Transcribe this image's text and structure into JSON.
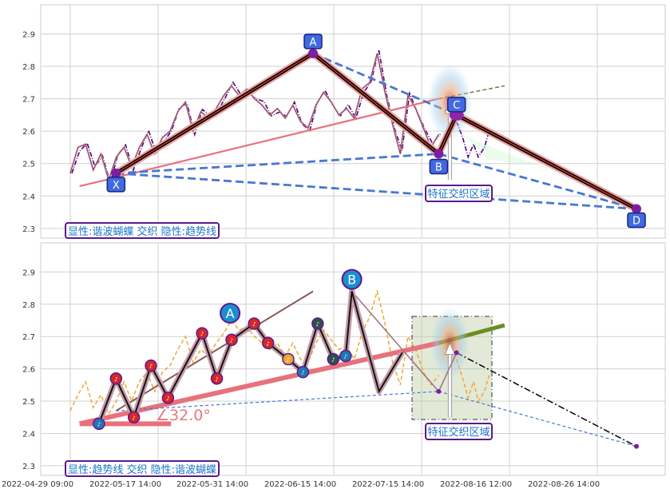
{
  "chart_data": [
    {
      "type": "line",
      "panel": "top",
      "ylim": [
        2.27,
        2.99
      ],
      "yticks": [
        2.3,
        2.4,
        2.5,
        2.6,
        2.7,
        2.8,
        2.9
      ],
      "legend_text": "显性:谐波蝴蝶 交织 隐性:趋势线",
      "zone_label": "特征交织区域",
      "pattern_points": [
        {
          "label": "X",
          "x": 5.9,
          "y": 2.47
        },
        {
          "label": "A",
          "x": 31.3,
          "y": 2.84
        },
        {
          "label": "B",
          "x": 47.5,
          "y": 2.53
        },
        {
          "label": "C",
          "x": 49.8,
          "y": 2.65
        },
        {
          "label": "D",
          "x": 73.0,
          "y": 2.36
        }
      ],
      "price_series": [
        2.47,
        2.55,
        2.56,
        2.48,
        2.53,
        2.45,
        2.52,
        2.55,
        2.49,
        2.55,
        2.59,
        2.53,
        2.58,
        2.6,
        2.66,
        2.69,
        2.6,
        2.66,
        2.64,
        2.67,
        2.71,
        2.74,
        2.71,
        2.73,
        2.7,
        2.68,
        2.65,
        2.67,
        2.64,
        2.68,
        2.63,
        2.61,
        2.68,
        2.72,
        2.69,
        2.65,
        2.67,
        2.64,
        2.73,
        2.75,
        2.84,
        2.72,
        2.62,
        2.53,
        2.71,
        2.67,
        2.61,
        2.55,
        2.59
      ]
    },
    {
      "type": "line",
      "panel": "bottom",
      "ylim": [
        2.27,
        2.99
      ],
      "yticks": [
        2.3,
        2.4,
        2.5,
        2.6,
        2.7,
        2.8,
        2.9
      ],
      "xtick_labels": [
        "2022-04-29 09:00",
        "2022-05-17 14:00",
        "2022-05-31 14:00",
        "2022-06-15 14:00",
        "2022-07-15 14:00",
        "2022-08-16 12:00",
        "2022-08-26 14:00"
      ],
      "legend_text": "显性:趋势线 交织 隐性:谐波蝴蝶",
      "zone_label": "特征交织区域",
      "angle_label": "∠32.0°",
      "major_labels": [
        {
          "label": "A",
          "x": 20.6,
          "y": 2.76
        },
        {
          "label": "B",
          "x": 36.3,
          "y": 2.84
        }
      ],
      "zigzag": [
        {
          "x": 3.7,
          "y": 2.43
        },
        {
          "x": 5.9,
          "y": 2.57
        },
        {
          "x": 8.2,
          "y": 2.45
        },
        {
          "x": 10.4,
          "y": 2.61
        },
        {
          "x": 12.6,
          "y": 2.51
        },
        {
          "x": 17.0,
          "y": 2.71
        },
        {
          "x": 18.9,
          "y": 2.57
        },
        {
          "x": 20.8,
          "y": 2.69
        },
        {
          "x": 23.7,
          "y": 2.74
        },
        {
          "x": 25.5,
          "y": 2.68
        },
        {
          "x": 28.1,
          "y": 2.63
        },
        {
          "x": 30.0,
          "y": 2.59
        },
        {
          "x": 31.9,
          "y": 2.74
        },
        {
          "x": 33.9,
          "y": 2.63
        },
        {
          "x": 35.5,
          "y": 2.64
        },
        {
          "x": 36.3,
          "y": 2.84
        },
        {
          "x": 39.8,
          "y": 2.53
        },
        {
          "x": 42.8,
          "y": 2.65
        }
      ],
      "price_series": [
        2.47,
        2.52,
        2.56,
        2.48,
        2.52,
        2.46,
        2.5,
        2.56,
        2.5,
        2.56,
        2.59,
        2.53,
        2.59,
        2.61,
        2.66,
        2.7,
        2.62,
        2.66,
        2.64,
        2.68,
        2.71,
        2.75,
        2.72,
        2.73,
        2.7,
        2.68,
        2.66,
        2.68,
        2.64,
        2.68,
        2.63,
        2.62,
        2.68,
        2.72,
        2.69,
        2.66,
        2.67,
        2.63,
        2.71,
        2.76,
        2.84,
        2.74,
        2.62,
        2.55,
        2.7,
        2.66,
        2.59,
        2.55,
        2.58
      ]
    }
  ]
}
